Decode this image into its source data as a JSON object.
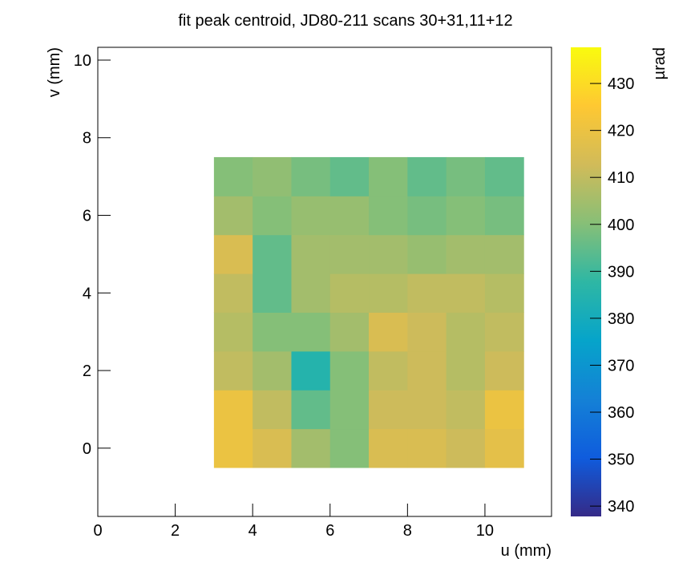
{
  "chart_data": {
    "type": "heatmap",
    "title": "fit peak centroid, JD80-211 scans 30+31,11+12",
    "xlabel": "u (mm)",
    "ylabel": "v (mm)",
    "zlabel": "µrad",
    "xbins": [
      3,
      4,
      5,
      6,
      7,
      8,
      9,
      10,
      11
    ],
    "ybins": [
      -0.5,
      0.5,
      1.5,
      2.5,
      3.5,
      4.5,
      5.5,
      6.5,
      7.5
    ],
    "values": [
      [
        420,
        415,
        405,
        400,
        415,
        415,
        412,
        418
      ],
      [
        420,
        410,
        395,
        400,
        412,
        412,
        410,
        420
      ],
      [
        410,
        405,
        385,
        400,
        410,
        412,
        408,
        412
      ],
      [
        408,
        400,
        400,
        405,
        415,
        412,
        408,
        410
      ],
      [
        410,
        395,
        405,
        408,
        408,
        410,
        410,
        408
      ],
      [
        415,
        395,
        405,
        405,
        405,
        403,
        405,
        405
      ],
      [
        405,
        400,
        403,
        403,
        400,
        398,
        400,
        398
      ],
      [
        400,
        402,
        398,
        395,
        400,
        395,
        398,
        395
      ]
    ],
    "xlim": [
      0,
      11.72
    ],
    "ylim": [
      -1.76,
      10.33
    ],
    "zlim": [
      337.8,
      437.7
    ],
    "xticks": [
      0,
      2,
      4,
      6,
      8,
      10
    ],
    "yticks": [
      0,
      2,
      4,
      6,
      8,
      10
    ],
    "zticks": [
      340,
      350,
      360,
      370,
      380,
      390,
      400,
      410,
      420,
      430
    ],
    "colormap": [
      "#352a87",
      "#0f5cdd",
      "#1481d6",
      "#06a4ca",
      "#2eb7a4",
      "#87bf77",
      "#d1bb59",
      "#fec832",
      "#f9fb0e"
    ]
  }
}
